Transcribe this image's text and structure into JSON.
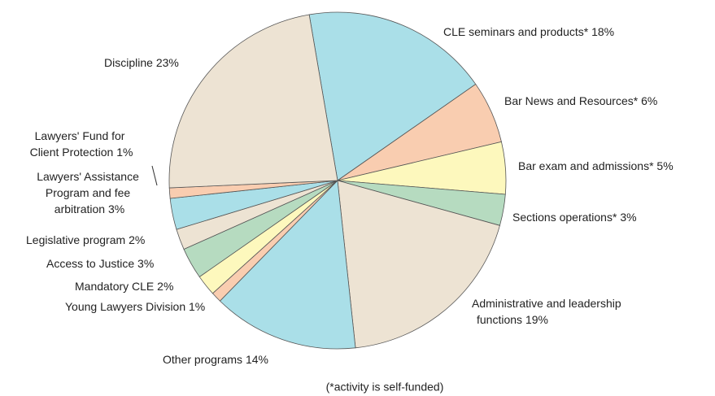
{
  "chart_data": {
    "type": "pie",
    "categories": [
      "CLE seminars and products*",
      "Bar News and Resources*",
      "Bar exam and admissions*",
      "Sections operations*",
      "Administrative and leadership functions",
      "Other programs",
      "Young Lawyers Division",
      "Mandatory CLE",
      "Access to Justice",
      "Legislative program",
      "Lawyers' Assistance Program and fee arbitration",
      "Lawyers' Fund for Client Protection",
      "Discipline"
    ],
    "values": [
      18,
      6,
      5,
      3,
      19,
      14,
      1,
      2,
      3,
      2,
      3,
      1,
      23
    ],
    "value_labels": [
      "18%",
      "6%",
      "5%",
      "3%",
      "19%",
      "14%",
      "1%",
      "2%",
      "3%",
      "2%",
      "3%",
      "1%",
      "23%"
    ],
    "colors": [
      "#aadfe8",
      "#f9cdb0",
      "#fdf8bd",
      "#b6dbc0",
      "#ede3d3",
      "#aadfe8",
      "#f9cdb0",
      "#fdf8bd",
      "#b6dbc0",
      "#ede3d3",
      "#aadfe8",
      "#f9cdb0",
      "#ede3d3"
    ],
    "note": "(*activity is self-funded)"
  }
}
